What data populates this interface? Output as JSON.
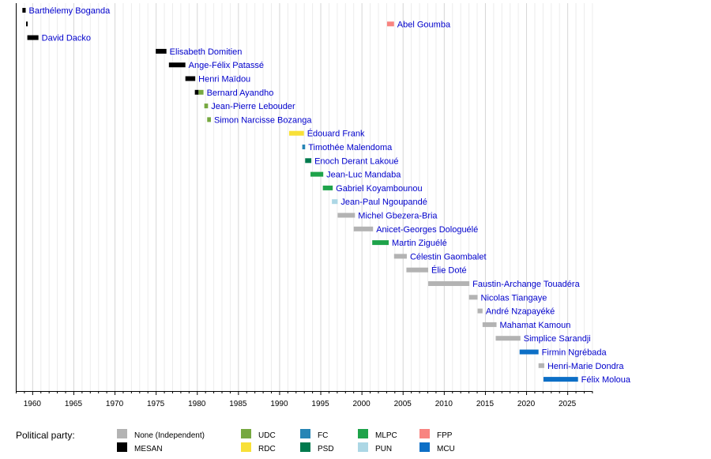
{
  "chart_data": {
    "type": "timeline",
    "xlim": [
      1958,
      2028
    ],
    "x_ticks": [
      1960,
      1965,
      1970,
      1975,
      1980,
      1985,
      1990,
      1995,
      2000,
      2005,
      2010,
      2015,
      2020,
      2025
    ],
    "grid": true,
    "legend_title": "Political party:",
    "legend_placement": "bottom",
    "parties": [
      {
        "name": "None (Independent)",
        "color": "#b3b3b3"
      },
      {
        "name": "MESAN",
        "color": "#000000"
      },
      {
        "name": "UDC",
        "color": "#76a840"
      },
      {
        "name": "RDC",
        "color": "#f8e038"
      },
      {
        "name": "FC",
        "color": "#2685b5"
      },
      {
        "name": "PSD",
        "color": "#007a4d"
      },
      {
        "name": "MLPC",
        "color": "#1ea34a"
      },
      {
        "name": "PUN",
        "color": "#acd7e5"
      },
      {
        "name": "FPP",
        "color": "#f88480"
      },
      {
        "name": "MCU",
        "color": "#0c6fc6"
      }
    ],
    "rows": [
      {
        "name": "Barthélemy Boganda",
        "terms": [
          {
            "start": 1958.8,
            "end": 1959.2,
            "party": "MESAN"
          }
        ]
      },
      {
        "name": "Abel Goumba",
        "terms": [
          {
            "start": 1959.25,
            "end": 1959.4,
            "party": "MESAN"
          },
          {
            "start": 2003.1,
            "end": 2003.95,
            "party": "FPP"
          }
        ]
      },
      {
        "name": "David Dacko",
        "terms": [
          {
            "start": 1959.4,
            "end": 1960.75,
            "party": "MESAN"
          }
        ]
      },
      {
        "name": "Elisabeth Domitien",
        "terms": [
          {
            "start": 1975.0,
            "end": 1976.3,
            "party": "MESAN"
          }
        ]
      },
      {
        "name": "Ange-Félix Patassé",
        "terms": [
          {
            "start": 1976.6,
            "end": 1978.6,
            "party": "MESAN"
          }
        ]
      },
      {
        "name": "Henri Maïdou",
        "terms": [
          {
            "start": 1978.6,
            "end": 1979.8,
            "party": "MESAN"
          }
        ]
      },
      {
        "name": "Bernard Ayandho",
        "terms": [
          {
            "start": 1979.75,
            "end": 1980.2,
            "party": "MESAN"
          },
          {
            "start": 1980.2,
            "end": 1980.8,
            "party": "UDC"
          }
        ]
      },
      {
        "name": "Jean-Pierre Lebouder",
        "terms": [
          {
            "start": 1980.9,
            "end": 1981.35,
            "party": "UDC"
          }
        ]
      },
      {
        "name": "Simon Narcisse Bozanga",
        "terms": [
          {
            "start": 1981.25,
            "end": 1981.7,
            "party": "UDC"
          }
        ]
      },
      {
        "name": "Édouard Frank",
        "terms": [
          {
            "start": 1991.2,
            "end": 1993.0,
            "party": "RDC"
          }
        ]
      },
      {
        "name": "Timothée Malendoma",
        "terms": [
          {
            "start": 1992.8,
            "end": 1993.15,
            "party": "FC"
          }
        ]
      },
      {
        "name": "Enoch Derant Lakoué",
        "terms": [
          {
            "start": 1993.15,
            "end": 1993.9,
            "party": "PSD"
          }
        ]
      },
      {
        "name": "Jean-Luc Mandaba",
        "terms": [
          {
            "start": 1993.8,
            "end": 1995.35,
            "party": "MLPC"
          }
        ]
      },
      {
        "name": "Gabriel Koyambounou",
        "terms": [
          {
            "start": 1995.3,
            "end": 1996.5,
            "party": "MLPC"
          }
        ]
      },
      {
        "name": "Jean-Paul Ngoupandé",
        "terms": [
          {
            "start": 1996.4,
            "end": 1997.1,
            "party": "PUN"
          }
        ]
      },
      {
        "name": "Michel Gbezera-Bria",
        "terms": [
          {
            "start": 1997.1,
            "end": 1999.2,
            "party": "None (Independent)"
          }
        ]
      },
      {
        "name": "Anicet-Georges Dologuélé",
        "terms": [
          {
            "start": 1999.05,
            "end": 2001.4,
            "party": "None (Independent)"
          }
        ]
      },
      {
        "name": "Martin Ziguélé",
        "terms": [
          {
            "start": 2001.3,
            "end": 2003.3,
            "party": "MLPC"
          }
        ]
      },
      {
        "name": "Célestin Gaombalet",
        "terms": [
          {
            "start": 2003.95,
            "end": 2005.5,
            "party": "None (Independent)"
          }
        ]
      },
      {
        "name": "Élie Doté",
        "terms": [
          {
            "start": 2005.45,
            "end": 2008.1,
            "party": "None (Independent)"
          }
        ]
      },
      {
        "name": "Faustin-Archange Touadéra",
        "terms": [
          {
            "start": 2008.1,
            "end": 2013.1,
            "party": "None (Independent)"
          }
        ]
      },
      {
        "name": "Nicolas Tiangaye",
        "terms": [
          {
            "start": 2013.05,
            "end": 2014.1,
            "party": "None (Independent)"
          }
        ]
      },
      {
        "name": "André Nzapayéké",
        "terms": [
          {
            "start": 2014.1,
            "end": 2014.7,
            "party": "None (Independent)"
          }
        ]
      },
      {
        "name": "Mahamat Kamoun",
        "terms": [
          {
            "start": 2014.7,
            "end": 2016.4,
            "party": "None (Independent)"
          }
        ]
      },
      {
        "name": "Simplice Sarandji",
        "terms": [
          {
            "start": 2016.3,
            "end": 2019.3,
            "party": "None (Independent)"
          }
        ]
      },
      {
        "name": "Firmin Ngrébada",
        "terms": [
          {
            "start": 2019.2,
            "end": 2021.5,
            "party": "MCU"
          }
        ]
      },
      {
        "name": "Henri-Marie Dondra",
        "terms": [
          {
            "start": 2021.5,
            "end": 2022.2,
            "party": "None (Independent)"
          }
        ]
      },
      {
        "name": "Félix Moloua",
        "terms": [
          {
            "start": 2022.1,
            "end": 2026.3,
            "party": "MCU"
          }
        ]
      }
    ]
  }
}
